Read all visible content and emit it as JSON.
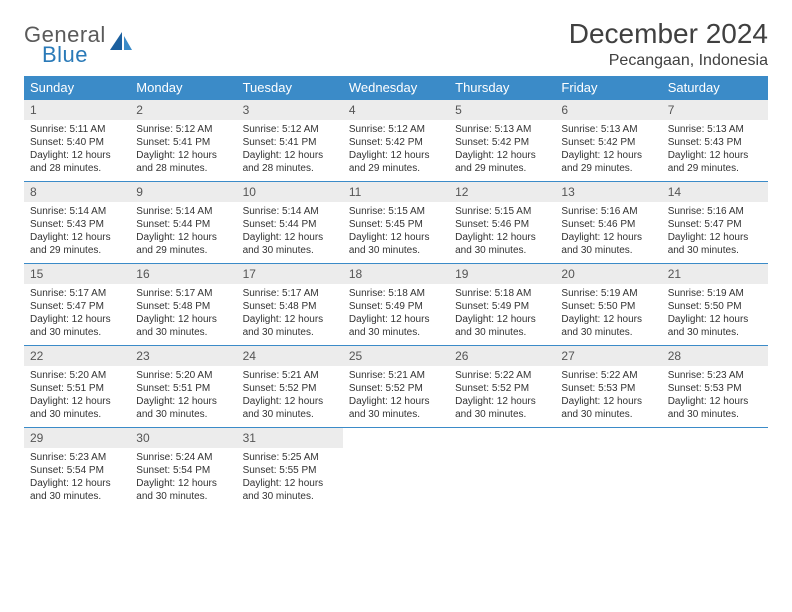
{
  "logo": {
    "top": "General",
    "bottom": "Blue"
  },
  "title": "December 2024",
  "location": "Pecangaan, Indonesia",
  "colors": {
    "header_bg": "#3b8bc8",
    "header_text": "#ffffff",
    "daynum_bg": "#ececec",
    "row_border": "#3b8bc8",
    "text": "#333333",
    "logo_gray": "#5a5a5a",
    "logo_blue": "#2a7ab8"
  },
  "fonts": {
    "title_size": 28,
    "location_size": 16,
    "dayhead_size": 13,
    "daynum_size": 12,
    "content_size": 10
  },
  "day_names": [
    "Sunday",
    "Monday",
    "Tuesday",
    "Wednesday",
    "Thursday",
    "Friday",
    "Saturday"
  ],
  "weeks": [
    [
      {
        "n": "1",
        "sr": "5:11 AM",
        "ss": "5:40 PM",
        "dh": "12",
        "dm": "28"
      },
      {
        "n": "2",
        "sr": "5:12 AM",
        "ss": "5:41 PM",
        "dh": "12",
        "dm": "28"
      },
      {
        "n": "3",
        "sr": "5:12 AM",
        "ss": "5:41 PM",
        "dh": "12",
        "dm": "28"
      },
      {
        "n": "4",
        "sr": "5:12 AM",
        "ss": "5:42 PM",
        "dh": "12",
        "dm": "29"
      },
      {
        "n": "5",
        "sr": "5:13 AM",
        "ss": "5:42 PM",
        "dh": "12",
        "dm": "29"
      },
      {
        "n": "6",
        "sr": "5:13 AM",
        "ss": "5:42 PM",
        "dh": "12",
        "dm": "29"
      },
      {
        "n": "7",
        "sr": "5:13 AM",
        "ss": "5:43 PM",
        "dh": "12",
        "dm": "29"
      }
    ],
    [
      {
        "n": "8",
        "sr": "5:14 AM",
        "ss": "5:43 PM",
        "dh": "12",
        "dm": "29"
      },
      {
        "n": "9",
        "sr": "5:14 AM",
        "ss": "5:44 PM",
        "dh": "12",
        "dm": "29"
      },
      {
        "n": "10",
        "sr": "5:14 AM",
        "ss": "5:44 PM",
        "dh": "12",
        "dm": "30"
      },
      {
        "n": "11",
        "sr": "5:15 AM",
        "ss": "5:45 PM",
        "dh": "12",
        "dm": "30"
      },
      {
        "n": "12",
        "sr": "5:15 AM",
        "ss": "5:46 PM",
        "dh": "12",
        "dm": "30"
      },
      {
        "n": "13",
        "sr": "5:16 AM",
        "ss": "5:46 PM",
        "dh": "12",
        "dm": "30"
      },
      {
        "n": "14",
        "sr": "5:16 AM",
        "ss": "5:47 PM",
        "dh": "12",
        "dm": "30"
      }
    ],
    [
      {
        "n": "15",
        "sr": "5:17 AM",
        "ss": "5:47 PM",
        "dh": "12",
        "dm": "30"
      },
      {
        "n": "16",
        "sr": "5:17 AM",
        "ss": "5:48 PM",
        "dh": "12",
        "dm": "30"
      },
      {
        "n": "17",
        "sr": "5:17 AM",
        "ss": "5:48 PM",
        "dh": "12",
        "dm": "30"
      },
      {
        "n": "18",
        "sr": "5:18 AM",
        "ss": "5:49 PM",
        "dh": "12",
        "dm": "30"
      },
      {
        "n": "19",
        "sr": "5:18 AM",
        "ss": "5:49 PM",
        "dh": "12",
        "dm": "30"
      },
      {
        "n": "20",
        "sr": "5:19 AM",
        "ss": "5:50 PM",
        "dh": "12",
        "dm": "30"
      },
      {
        "n": "21",
        "sr": "5:19 AM",
        "ss": "5:50 PM",
        "dh": "12",
        "dm": "30"
      }
    ],
    [
      {
        "n": "22",
        "sr": "5:20 AM",
        "ss": "5:51 PM",
        "dh": "12",
        "dm": "30"
      },
      {
        "n": "23",
        "sr": "5:20 AM",
        "ss": "5:51 PM",
        "dh": "12",
        "dm": "30"
      },
      {
        "n": "24",
        "sr": "5:21 AM",
        "ss": "5:52 PM",
        "dh": "12",
        "dm": "30"
      },
      {
        "n": "25",
        "sr": "5:21 AM",
        "ss": "5:52 PM",
        "dh": "12",
        "dm": "30"
      },
      {
        "n": "26",
        "sr": "5:22 AM",
        "ss": "5:52 PM",
        "dh": "12",
        "dm": "30"
      },
      {
        "n": "27",
        "sr": "5:22 AM",
        "ss": "5:53 PM",
        "dh": "12",
        "dm": "30"
      },
      {
        "n": "28",
        "sr": "5:23 AM",
        "ss": "5:53 PM",
        "dh": "12",
        "dm": "30"
      }
    ],
    [
      {
        "n": "29",
        "sr": "5:23 AM",
        "ss": "5:54 PM",
        "dh": "12",
        "dm": "30"
      },
      {
        "n": "30",
        "sr": "5:24 AM",
        "ss": "5:54 PM",
        "dh": "12",
        "dm": "30"
      },
      {
        "n": "31",
        "sr": "5:25 AM",
        "ss": "5:55 PM",
        "dh": "12",
        "dm": "30"
      },
      null,
      null,
      null,
      null
    ]
  ],
  "labels": {
    "sunrise": "Sunrise:",
    "sunset": "Sunset:",
    "daylight_prefix": "Daylight:",
    "hours_word": "hours",
    "and_word": "and",
    "minutes_word": "minutes."
  }
}
